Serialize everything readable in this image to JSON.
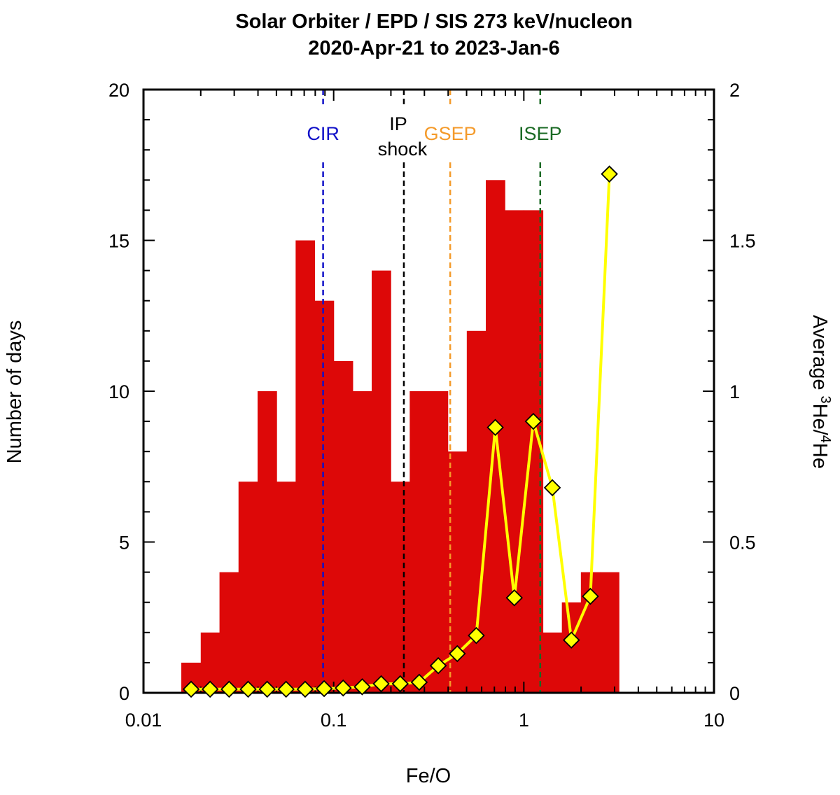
{
  "chart_data": {
    "type": "bar+line",
    "title": "Solar Orbiter / EPD / SIS 273 keV/nucleon",
    "subtitle": "2020-Apr-21 to 2023-Jan-6",
    "xlabel": "Fe/O",
    "ylabel": "Number of days",
    "y2label": {
      "prefix": "Average ",
      "sup1": "3",
      "mid": "He/",
      "sup2": "4",
      "suffix": "He"
    },
    "xscale": "log",
    "xlim": [
      0.01,
      10
    ],
    "ylim": [
      0,
      20
    ],
    "y2lim": [
      0,
      2
    ],
    "x_tick_labels": [
      "0.01",
      "0.1",
      "1",
      "10"
    ],
    "x_tick_values": [
      0.01,
      0.1,
      1,
      10
    ],
    "y_tick_labels": [
      "0",
      "5",
      "10",
      "15",
      "20"
    ],
    "y_tick_values": [
      0,
      5,
      10,
      15,
      20
    ],
    "y2_tick_labels": [
      "0",
      "0.5",
      "1",
      "1.5",
      "2"
    ],
    "y2_tick_values": [
      0,
      0.5,
      1,
      1.5,
      2
    ],
    "histogram": {
      "name": "Number of days",
      "color": "#dd0808",
      "bin_edges": [
        0.0158,
        0.02,
        0.0251,
        0.0316,
        0.0398,
        0.0501,
        0.0631,
        0.0794,
        0.1,
        0.1259,
        0.1585,
        0.1995,
        0.2512,
        0.3162,
        0.3981,
        0.5012,
        0.631,
        0.7943,
        1.0,
        1.2589,
        1.5849,
        1.9953,
        2.5119,
        3.1623
      ],
      "values": [
        1,
        2,
        4,
        7,
        10,
        7,
        15,
        13,
        11,
        10,
        14,
        7,
        10,
        10,
        8,
        12,
        17,
        16,
        16,
        2,
        3,
        4,
        4
      ]
    },
    "he_ratio_series": {
      "name": "Average 3He/4He",
      "color": "#ffff00",
      "marker": "diamond",
      "x": [
        0.0178,
        0.0224,
        0.0282,
        0.0355,
        0.0447,
        0.0562,
        0.0708,
        0.0891,
        0.1122,
        0.1413,
        0.1778,
        0.2239,
        0.2818,
        0.3548,
        0.4467,
        0.5623,
        0.7079,
        0.8913,
        1.122,
        1.4125,
        1.7783,
        2.2387,
        2.8184
      ],
      "y": [
        0.012,
        0.012,
        0.012,
        0.012,
        0.012,
        0.012,
        0.012,
        0.014,
        0.016,
        0.02,
        0.03,
        0.03,
        0.035,
        0.09,
        0.13,
        0.19,
        0.88,
        0.315,
        0.9,
        0.68,
        0.175,
        0.32,
        1.72
      ]
    },
    "reference_lines": [
      {
        "label": "CIR",
        "x": 0.088,
        "color": "#1010c8"
      },
      {
        "label_line1": "IP",
        "label_line2": "shock",
        "x": 0.234,
        "color": "#000000"
      },
      {
        "label": "GSEP",
        "x": 0.41,
        "color": "#f49a2a"
      },
      {
        "label": "ISEP",
        "x": 1.22,
        "color": "#1a6a24"
      }
    ]
  }
}
